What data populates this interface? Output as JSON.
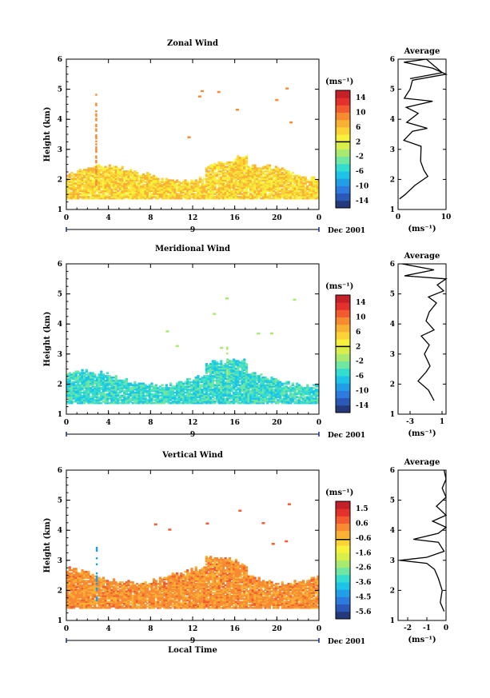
{
  "chart_data": [
    {
      "type": "heatmap",
      "title": "Zonal Wind",
      "ylabel": "Height (km)",
      "xlabel": "",
      "xlim": [
        0,
        24
      ],
      "ylim": [
        1,
        6
      ],
      "x_ticks": [
        "0",
        "4",
        "8",
        "12",
        "16",
        "20",
        "0"
      ],
      "y_ticks": [
        "1",
        "2",
        "3",
        "4",
        "5",
        "6"
      ],
      "date_bar": {
        "day": "9",
        "month_year": "Dec 2001"
      },
      "colorbar": {
        "unit_label": "(ms⁻¹)",
        "tick_labels": [
          "14",
          "10",
          "6",
          "2",
          "-2",
          "-6",
          "-10",
          "-14"
        ],
        "range": [
          -16,
          16
        ]
      },
      "cells_summary": {
        "main_layer_km": [
          1.35,
          2.1
        ],
        "dominant_values_ms": [
          2,
          8
        ],
        "sparse_features": [
          {
            "t_h": 2.75,
            "h_km": [
              1.8,
              4.8
            ],
            "value_ms": 9
          }
        ]
      },
      "profile": {
        "title": "Average",
        "xlabel": "(ms⁻¹)",
        "x_ticks": [
          "0",
          "10"
        ],
        "xlim": [
          0,
          10
        ],
        "y_ticks": [
          "1",
          "2",
          "3",
          "4",
          "5",
          "6"
        ],
        "ylim": [
          1,
          6
        ],
        "points": [
          [
            0.3,
            1.35
          ],
          [
            1.5,
            1.5
          ],
          [
            3.5,
            1.8
          ],
          [
            6.2,
            2.1
          ],
          [
            5.4,
            2.3
          ],
          [
            4.7,
            2.6
          ],
          [
            4.8,
            3.1
          ],
          [
            1.2,
            3.3
          ],
          [
            3.0,
            3.6
          ],
          [
            6.1,
            3.7
          ],
          [
            1.8,
            3.9
          ],
          [
            4.2,
            4.2
          ],
          [
            1.7,
            4.4
          ],
          [
            7.2,
            4.6
          ],
          [
            1.3,
            4.7
          ],
          [
            2.5,
            5.0
          ],
          [
            3.0,
            5.3
          ],
          [
            10.0,
            5.5
          ],
          [
            7.2,
            5.7
          ],
          [
            1.2,
            5.9
          ],
          [
            5.9,
            6.0
          ],
          [
            9.2,
            5.55
          ],
          [
            2.5,
            5.35
          ]
        ]
      }
    },
    {
      "type": "heatmap",
      "title": "Meridional Wind",
      "ylabel": "Height (km)",
      "xlabel": "",
      "xlim": [
        0,
        24
      ],
      "ylim": [
        1,
        6
      ],
      "x_ticks": [
        "0",
        "4",
        "8",
        "12",
        "16",
        "20",
        "0"
      ],
      "y_ticks": [
        "1",
        "2",
        "3",
        "4",
        "5",
        "6"
      ],
      "date_bar": {
        "day": "9",
        "month_year": "Dec 2001"
      },
      "colorbar": {
        "unit_label": "(ms⁻¹)",
        "tick_labels": [
          "14",
          "10",
          "6",
          "2",
          "-2",
          "-6",
          "-10",
          "-14"
        ],
        "range": [
          -16,
          16
        ]
      },
      "cells_summary": {
        "main_layer_km": [
          1.35,
          2.1
        ],
        "dominant_values_ms": [
          -8,
          -2
        ],
        "sparse_features": [
          {
            "t_h": 15.2,
            "h_km": [
              2.0,
              3.5
            ],
            "value_ms": -2
          }
        ]
      },
      "profile": {
        "title": "Average",
        "xlabel": "(ms⁻¹)",
        "x_ticks": [
          "-3",
          "1"
        ],
        "xlim": [
          -4.5,
          1.5
        ],
        "y_ticks": [
          "1",
          "2",
          "3",
          "4",
          "5",
          "6"
        ],
        "ylim": [
          1,
          6
        ],
        "points": [
          [
            0.0,
            1.45
          ],
          [
            -0.7,
            1.8
          ],
          [
            -2.0,
            2.1
          ],
          [
            -1.0,
            2.4
          ],
          [
            -0.5,
            2.6
          ],
          [
            -1.2,
            3.0
          ],
          [
            -0.6,
            3.3
          ],
          [
            -1.6,
            3.6
          ],
          [
            0.0,
            3.8
          ],
          [
            -1.0,
            4.1
          ],
          [
            -0.6,
            4.4
          ],
          [
            0.3,
            4.7
          ],
          [
            -0.7,
            4.9
          ],
          [
            1.2,
            5.1
          ],
          [
            0.4,
            5.3
          ],
          [
            1.5,
            5.5
          ],
          [
            -3.7,
            5.6
          ],
          [
            0.0,
            5.8
          ],
          [
            -4.0,
            6.0
          ]
        ]
      }
    },
    {
      "type": "heatmap",
      "title": "Vertical Wind",
      "ylabel": "Height (km)",
      "xlabel": "Local Time",
      "xlim": [
        0,
        24
      ],
      "ylim": [
        1,
        6
      ],
      "x_ticks": [
        "0",
        "4",
        "8",
        "12",
        "16",
        "20",
        "0"
      ],
      "y_ticks": [
        "1",
        "2",
        "3",
        "4",
        "5",
        "6"
      ],
      "date_bar": {
        "day": "9",
        "month_year": "Dec 2001"
      },
      "colorbar": {
        "unit_label": "(ms⁻¹)",
        "tick_labels": [
          "1.5",
          "0.6",
          "-0.6",
          "-1.6",
          "-2.6",
          "-3.6",
          "-4.5",
          "-5.6"
        ],
        "range": [
          -6,
          2
        ]
      },
      "cells_summary": {
        "main_layer_km": [
          1.4,
          2.4
        ],
        "dominant_values_ms": [
          -0.3,
          0.6
        ],
        "sparse_features": [
          {
            "t_h": 2.8,
            "h_km": [
              1.5,
              3.4
            ],
            "value_ms": -4.5
          }
        ]
      },
      "profile": {
        "title": "Average",
        "xlabel": "(ms⁻¹)",
        "x_ticks": [
          "-2",
          "-1",
          "0"
        ],
        "xlim": [
          -2.5,
          0
        ],
        "y_ticks": [
          "1",
          "2",
          "3",
          "4",
          "5",
          "6"
        ],
        "ylim": [
          1,
          6
        ],
        "points": [
          [
            -0.1,
            1.3
          ],
          [
            -0.3,
            1.6
          ],
          [
            -0.2,
            2.0
          ],
          [
            -0.4,
            2.4
          ],
          [
            -0.6,
            2.7
          ],
          [
            -1.0,
            2.9
          ],
          [
            -2.4,
            3.0
          ],
          [
            -1.0,
            3.1
          ],
          [
            -0.1,
            3.3
          ],
          [
            -0.4,
            3.6
          ],
          [
            -1.7,
            3.7
          ],
          [
            -0.4,
            3.9
          ],
          [
            0.0,
            4.1
          ],
          [
            -0.7,
            4.3
          ],
          [
            0.0,
            4.5
          ],
          [
            -0.5,
            4.8
          ],
          [
            0.0,
            5.1
          ],
          [
            -0.2,
            5.4
          ],
          [
            0.0,
            5.7
          ],
          [
            -0.1,
            6.0
          ]
        ]
      }
    }
  ]
}
